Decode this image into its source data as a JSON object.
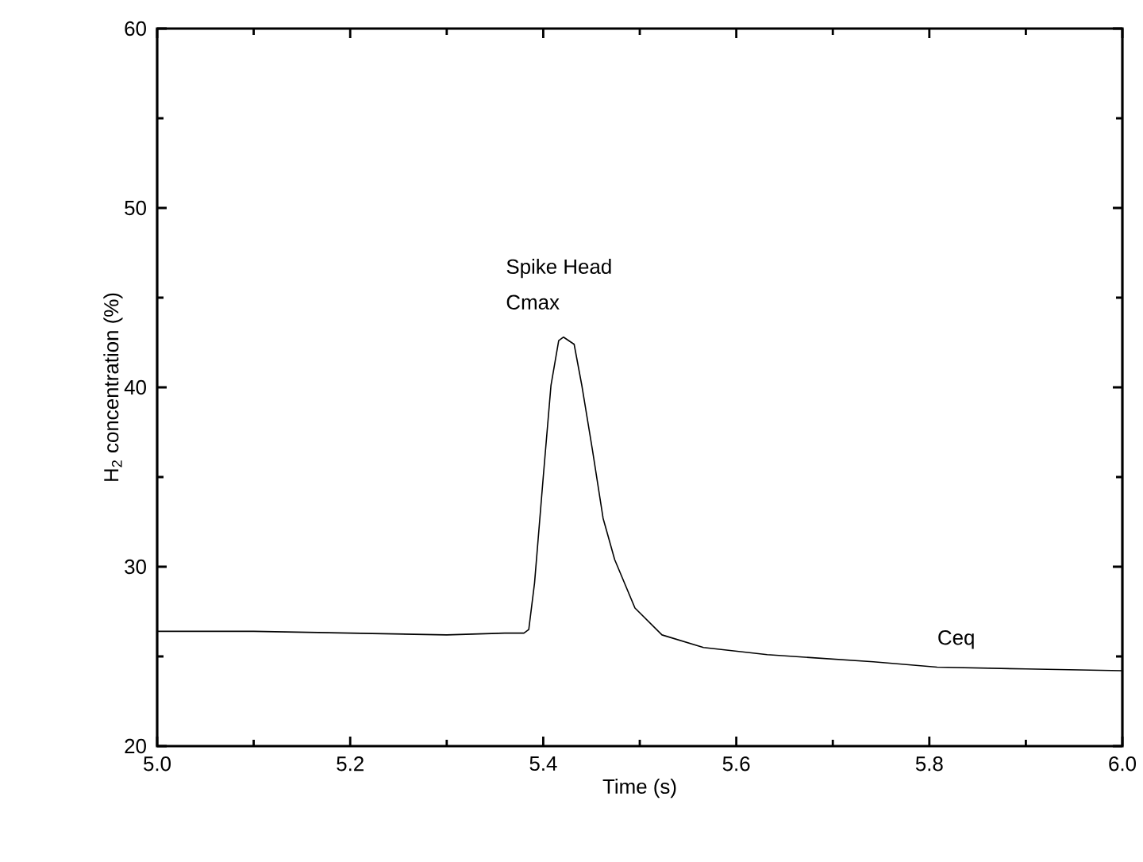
{
  "chart_data": {
    "type": "line",
    "xlabel": "Time (s)",
    "ylabel": "H$_{2}$ concentration (%)",
    "x": [
      5.0,
      5.1,
      5.2,
      5.3,
      5.36,
      5.38,
      5.385,
      5.391,
      5.4,
      5.408,
      5.416,
      5.421,
      5.432,
      5.44,
      5.451,
      5.462,
      5.474,
      5.495,
      5.523,
      5.566,
      5.632,
      5.742,
      5.808,
      5.9,
      6.0
    ],
    "series": [
      {
        "color": "#000000",
        "values": [
          26.4,
          26.4,
          26.3,
          26.2,
          26.3,
          26.3,
          26.5,
          29.1,
          35.0,
          40.1,
          42.6,
          42.8,
          42.4,
          40.1,
          36.5,
          32.7,
          30.4,
          27.7,
          26.2,
          25.5,
          25.1,
          24.7,
          24.4,
          24.3,
          24.2
        ]
      }
    ],
    "xlim": [
      5.0,
      6.0
    ],
    "ylim": [
      20,
      60
    ],
    "xticks": [
      {
        "value": 5.0,
        "label": "5.0"
      },
      {
        "value": 5.2,
        "label": "5.2"
      },
      {
        "value": 5.4,
        "label": "5.4"
      },
      {
        "value": 5.6,
        "label": "5.6"
      },
      {
        "value": 5.8,
        "label": "5.8"
      },
      {
        "value": 6.0,
        "label": "6.0"
      }
    ],
    "yticks": [
      20,
      30,
      40,
      50,
      60
    ],
    "annotations": [
      "Spike Head",
      "Cmax",
      "Ceq"
    ],
    "grid": false,
    "marker": "none",
    "line_style": "solid"
  }
}
